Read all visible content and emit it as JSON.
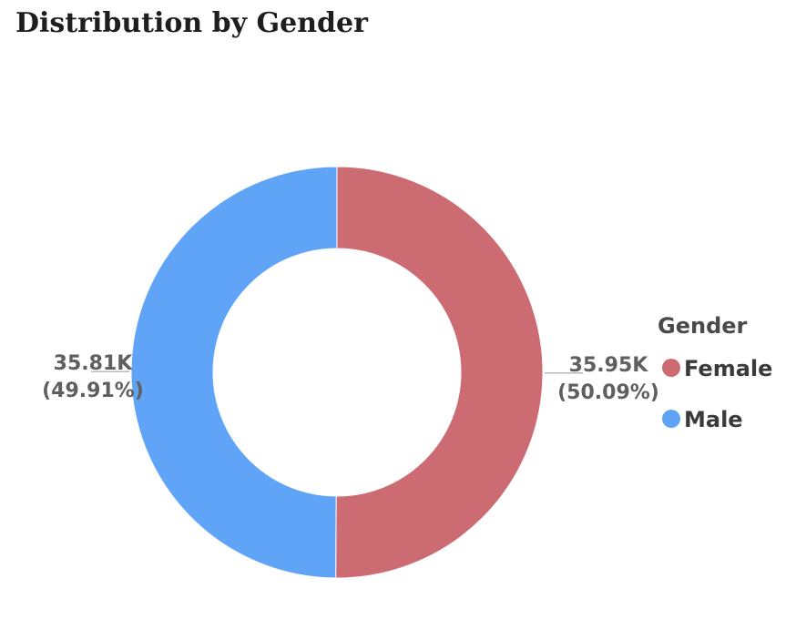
{
  "chart_data": {
    "type": "pie",
    "style": "donut",
    "title": "Distribution by Gender",
    "legend_title": "Gender",
    "legend_position": "right",
    "slices": [
      {
        "name": "Female",
        "value": 35950,
        "display_value": "35.95K",
        "percent_label": "(50.09%)",
        "color": "#cd6b73"
      },
      {
        "name": "Male",
        "value": 35810,
        "display_value": "35.81K",
        "percent_label": "(49.91%)",
        "color": "#5fa4f7"
      }
    ]
  }
}
